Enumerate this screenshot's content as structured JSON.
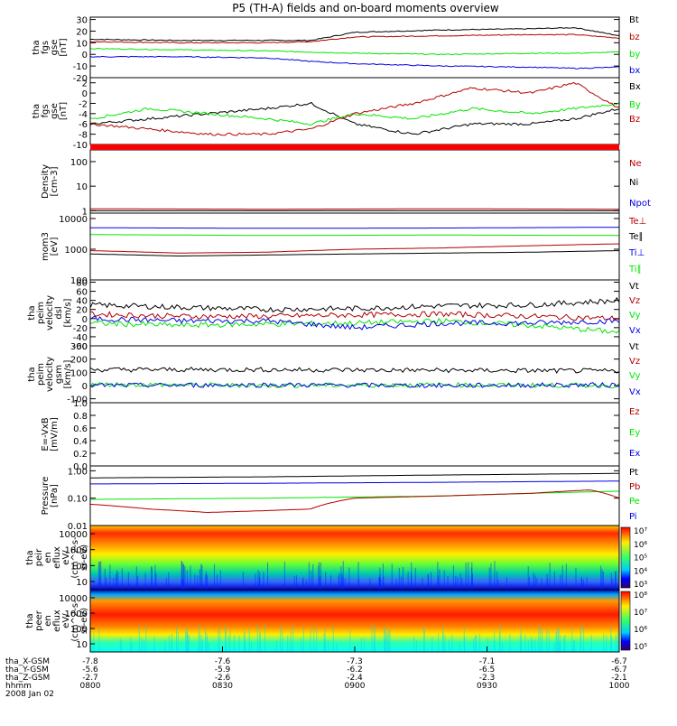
{
  "title": "P5 (TH-A) fields and on-board moments overview",
  "colors": {
    "black": "#000000",
    "red": "#b30000",
    "green": "#00e600",
    "blue": "#0000e6",
    "spec_band": "#ff0000"
  },
  "chart_data": [
    {
      "type": "line",
      "panel": "fgs_gse",
      "ylabel_lines": [
        "tha",
        "fgs",
        "gse",
        "[nT]"
      ],
      "yticks": [
        "30",
        "20",
        "10",
        "0",
        "-10",
        "-20"
      ],
      "ylim": [
        -20,
        32
      ],
      "legend": [
        {
          "label": "Bt",
          "color": "black"
        },
        {
          "label": "bz",
          "color": "red"
        },
        {
          "label": "by",
          "color": "green"
        },
        {
          "label": "bx",
          "color": "blue"
        }
      ],
      "series": [
        {
          "name": "Bt",
          "color": "black",
          "x": [
            0,
            30,
            60,
            75,
            90,
            120,
            150,
            165,
            180
          ],
          "y": [
            13,
            12,
            12,
            12,
            19,
            21,
            22,
            23,
            16
          ]
        },
        {
          "name": "bz",
          "color": "red",
          "x": [
            0,
            30,
            60,
            75,
            90,
            120,
            150,
            165,
            180
          ],
          "y": [
            11,
            10,
            10,
            11,
            15,
            16,
            17,
            17,
            14
          ]
        },
        {
          "name": "by",
          "color": "green",
          "x": [
            0,
            30,
            60,
            75,
            90,
            120,
            150,
            165,
            180
          ],
          "y": [
            5,
            4,
            3,
            2,
            1,
            0,
            1,
            1,
            2
          ]
        },
        {
          "name": "bx",
          "color": "blue",
          "x": [
            0,
            30,
            60,
            75,
            90,
            120,
            150,
            165,
            180
          ],
          "y": [
            -2,
            -2,
            -3,
            -6,
            -8,
            -10,
            -11,
            -12,
            -11
          ]
        }
      ]
    },
    {
      "type": "line",
      "panel": "fgs_gse_zoom",
      "ylabel_lines": [
        "tha",
        "fgs",
        "gse",
        "[nT]"
      ],
      "yticks": [
        "2",
        "0",
        "-2",
        "-4",
        "-6",
        "-8",
        "-10"
      ],
      "ylim": [
        -10,
        3
      ],
      "legend": [
        {
          "label": "Bx",
          "color": "black"
        },
        {
          "label": "By",
          "color": "green"
        },
        {
          "label": "Bz",
          "color": "red"
        }
      ],
      "series": [
        {
          "name": "Bx",
          "color": "black",
          "x": [
            0,
            20,
            40,
            60,
            75,
            90,
            110,
            130,
            150,
            165,
            180
          ],
          "y": [
            -6,
            -5,
            -4,
            -3,
            -2,
            -6,
            -8,
            -6,
            -6,
            -5,
            -3
          ]
        },
        {
          "name": "By",
          "color": "green",
          "x": [
            0,
            20,
            40,
            60,
            75,
            90,
            110,
            130,
            150,
            165,
            180
          ],
          "y": [
            -5,
            -3,
            -4,
            -5,
            -6,
            -4,
            -5,
            -3,
            -4,
            -3,
            -2
          ]
        },
        {
          "name": "Bz",
          "color": "red",
          "x": [
            0,
            20,
            40,
            60,
            75,
            90,
            110,
            130,
            150,
            165,
            180
          ],
          "y": [
            -6,
            -7,
            -8,
            -8,
            -7,
            -4,
            -2,
            1,
            0,
            2,
            -3
          ]
        }
      ]
    },
    {
      "type": "line",
      "panel": "density",
      "ylabel_lines": [
        "Density",
        "[cm-3]"
      ],
      "yticks": [
        "100",
        "10",
        "1"
      ],
      "yscale": "log",
      "ylim": [
        0.8,
        300
      ],
      "legend": [
        {
          "label": "Ne",
          "color": "red"
        },
        {
          "label": "Ni",
          "color": "black"
        },
        {
          "label": "Npot",
          "color": "blue"
        }
      ],
      "series": [
        {
          "name": "Ne",
          "color": "red",
          "x": [
            0,
            60,
            120,
            180
          ],
          "y": [
            1.2,
            1.15,
            1.2,
            1.15
          ]
        },
        {
          "name": "Ni",
          "color": "black",
          "x": [
            0,
            60,
            120,
            180
          ],
          "y": [
            1.0,
            1.0,
            1.0,
            1.0
          ]
        }
      ]
    },
    {
      "type": "line",
      "panel": "temperature",
      "ylabel_lines": [
        "mom3",
        "[eV]"
      ],
      "yticks": [
        "10000",
        "1000",
        "100"
      ],
      "yscale": "log",
      "ylim": [
        100,
        15000
      ],
      "legend": [
        {
          "label": "Te⊥",
          "color": "red"
        },
        {
          "label": "Te∥",
          "color": "black"
        },
        {
          "label": "Ti⊥",
          "color": "blue"
        },
        {
          "label": "Ti∥",
          "color": "green"
        }
      ],
      "series": [
        {
          "name": "Ti⊥",
          "color": "blue",
          "x": [
            0,
            60,
            120,
            180
          ],
          "y": [
            5000,
            4800,
            4900,
            5200
          ]
        },
        {
          "name": "Ti∥",
          "color": "green",
          "x": [
            0,
            60,
            120,
            180
          ],
          "y": [
            3000,
            2800,
            2900,
            2800
          ]
        },
        {
          "name": "Te⊥",
          "color": "red",
          "x": [
            0,
            30,
            60,
            90,
            120,
            150,
            180
          ],
          "y": [
            900,
            750,
            800,
            1000,
            1100,
            1300,
            1500
          ]
        },
        {
          "name": "Te∥",
          "color": "black",
          "x": [
            0,
            30,
            60,
            90,
            120,
            150,
            180
          ],
          "y": [
            700,
            600,
            650,
            700,
            750,
            800,
            900
          ]
        }
      ]
    },
    {
      "type": "line",
      "panel": "velocity_dsl",
      "ylabel_lines": [
        "tha",
        "peim",
        "velocity",
        "dsl",
        "[km/s]"
      ],
      "yticks": [
        "80",
        "60",
        "40",
        "20",
        "0",
        "-20",
        "-40",
        "-60"
      ],
      "ylim": [
        -60,
        85
      ],
      "legend": [
        {
          "label": "Vt",
          "color": "black"
        },
        {
          "label": "Vz",
          "color": "red"
        },
        {
          "label": "Vy",
          "color": "green"
        },
        {
          "label": "Vx",
          "color": "blue"
        }
      ],
      "series": [
        {
          "name": "Vt",
          "color": "black",
          "x": [
            0,
            30,
            60,
            90,
            120,
            150,
            180
          ],
          "y": [
            30,
            25,
            20,
            22,
            28,
            30,
            40
          ]
        },
        {
          "name": "Vz",
          "color": "red",
          "x": [
            0,
            30,
            60,
            90,
            120,
            150,
            180
          ],
          "y": [
            10,
            5,
            5,
            8,
            10,
            5,
            0
          ]
        },
        {
          "name": "Vy",
          "color": "green",
          "x": [
            0,
            30,
            60,
            90,
            120,
            150,
            180
          ],
          "y": [
            -10,
            -15,
            -12,
            -10,
            -5,
            -15,
            -30
          ]
        },
        {
          "name": "Vx",
          "color": "blue",
          "x": [
            0,
            30,
            60,
            90,
            120,
            150,
            180
          ],
          "y": [
            0,
            -5,
            -5,
            -20,
            -10,
            -10,
            -5
          ]
        }
      ]
    },
    {
      "type": "line",
      "panel": "velocity_gsm",
      "ylabel_lines": [
        "tha",
        "peim",
        "velocity",
        "gsm",
        "[km/s]"
      ],
      "yticks": [
        "300",
        "200",
        "100",
        "0",
        "-100"
      ],
      "ylim": [
        -130,
        300
      ],
      "legend": [
        {
          "label": "Vt",
          "color": "black"
        },
        {
          "label": "Vz",
          "color": "red"
        },
        {
          "label": "Vy",
          "color": "green"
        },
        {
          "label": "Vx",
          "color": "blue"
        }
      ],
      "series": [
        {
          "name": "Vt",
          "color": "black",
          "x": [
            0,
            60,
            120,
            180
          ],
          "y": [
            120,
            120,
            115,
            110
          ]
        },
        {
          "name": "Vy",
          "color": "green",
          "x": [
            0,
            60,
            120,
            180
          ],
          "y": [
            10,
            0,
            5,
            0
          ]
        },
        {
          "name": "Vx",
          "color": "blue",
          "x": [
            0,
            60,
            120,
            180
          ],
          "y": [
            0,
            5,
            0,
            5
          ]
        }
      ]
    },
    {
      "type": "line",
      "panel": "efield",
      "ylabel_lines": [
        "E=-VxB",
        "[mV/m]"
      ],
      "yticks": [
        "1.0",
        "0.8",
        "0.6",
        "0.4",
        "0.2",
        "0.0"
      ],
      "ylim": [
        0,
        1
      ],
      "legend": [
        {
          "label": "Ez",
          "color": "red"
        },
        {
          "label": "Ey",
          "color": "green"
        },
        {
          "label": "Ex",
          "color": "blue"
        }
      ],
      "series": []
    },
    {
      "type": "line",
      "panel": "pressure",
      "ylabel_lines": [
        "Pressure",
        "[nPa]"
      ],
      "yticks": [
        "1.00",
        "0.10",
        "0.01"
      ],
      "yscale": "log",
      "ylim": [
        0.01,
        1.5
      ],
      "legend": [
        {
          "label": "Pt",
          "color": "black"
        },
        {
          "label": "Pb",
          "color": "red"
        },
        {
          "label": "Pe",
          "color": "green"
        },
        {
          "label": "Pi",
          "color": "blue"
        }
      ],
      "series": [
        {
          "name": "Pt",
          "color": "black",
          "x": [
            0,
            60,
            120,
            180
          ],
          "y": [
            0.55,
            0.6,
            0.7,
            0.8
          ]
        },
        {
          "name": "Pi",
          "color": "blue",
          "x": [
            0,
            60,
            120,
            180
          ],
          "y": [
            0.33,
            0.35,
            0.38,
            0.42
          ]
        },
        {
          "name": "Pe",
          "color": "green",
          "x": [
            0,
            60,
            120,
            180
          ],
          "y": [
            0.09,
            0.1,
            0.12,
            0.18
          ]
        },
        {
          "name": "Pb",
          "color": "red",
          "x": [
            0,
            20,
            40,
            60,
            75,
            90,
            120,
            150,
            170,
            180
          ],
          "y": [
            0.06,
            0.04,
            0.03,
            0.035,
            0.04,
            0.1,
            0.12,
            0.15,
            0.2,
            0.1
          ]
        }
      ]
    },
    {
      "type": "heatmap",
      "panel": "ion_spectrogram",
      "ylabel_lines": [
        "tha",
        "peir",
        "en",
        "eflux",
        "eV/",
        "(cm^2-s-",
        "sr-eV)"
      ],
      "yticks": [
        "10000",
        "1000",
        "100",
        "10"
      ],
      "colorbar_ticks": [
        "10⁷",
        "10⁶",
        "10⁵",
        "10⁴",
        "10³"
      ]
    },
    {
      "type": "heatmap",
      "panel": "electron_spectrogram",
      "ylabel_lines": [
        "tha",
        "peer",
        "en",
        "eflux",
        "eV/",
        "(cm^2-s-",
        "sr-eV)"
      ],
      "yticks": [
        "10000",
        "1000",
        "100",
        "10"
      ],
      "colorbar_ticks": [
        "10⁸",
        "10⁷",
        "10⁶",
        "10⁵"
      ]
    }
  ],
  "xaxis": {
    "rows": [
      {
        "label": "tha_X-GSM",
        "values": [
          "-7.8",
          "-7.6",
          "-7.3",
          "-7.1",
          "-6.7"
        ]
      },
      {
        "label": "tha_Y-GSM",
        "values": [
          "-5.6",
          "-5.9",
          "-6.2",
          "-6.5",
          "-6.7"
        ]
      },
      {
        "label": "tha_Z-GSM",
        "values": [
          "-2.7",
          "-2.6",
          "-2.4",
          "-2.3",
          "-2.1"
        ]
      },
      {
        "label": "hhmm",
        "values": [
          "0800",
          "0830",
          "0900",
          "0930",
          "1000"
        ]
      }
    ],
    "date": "2008 Jan 02"
  }
}
